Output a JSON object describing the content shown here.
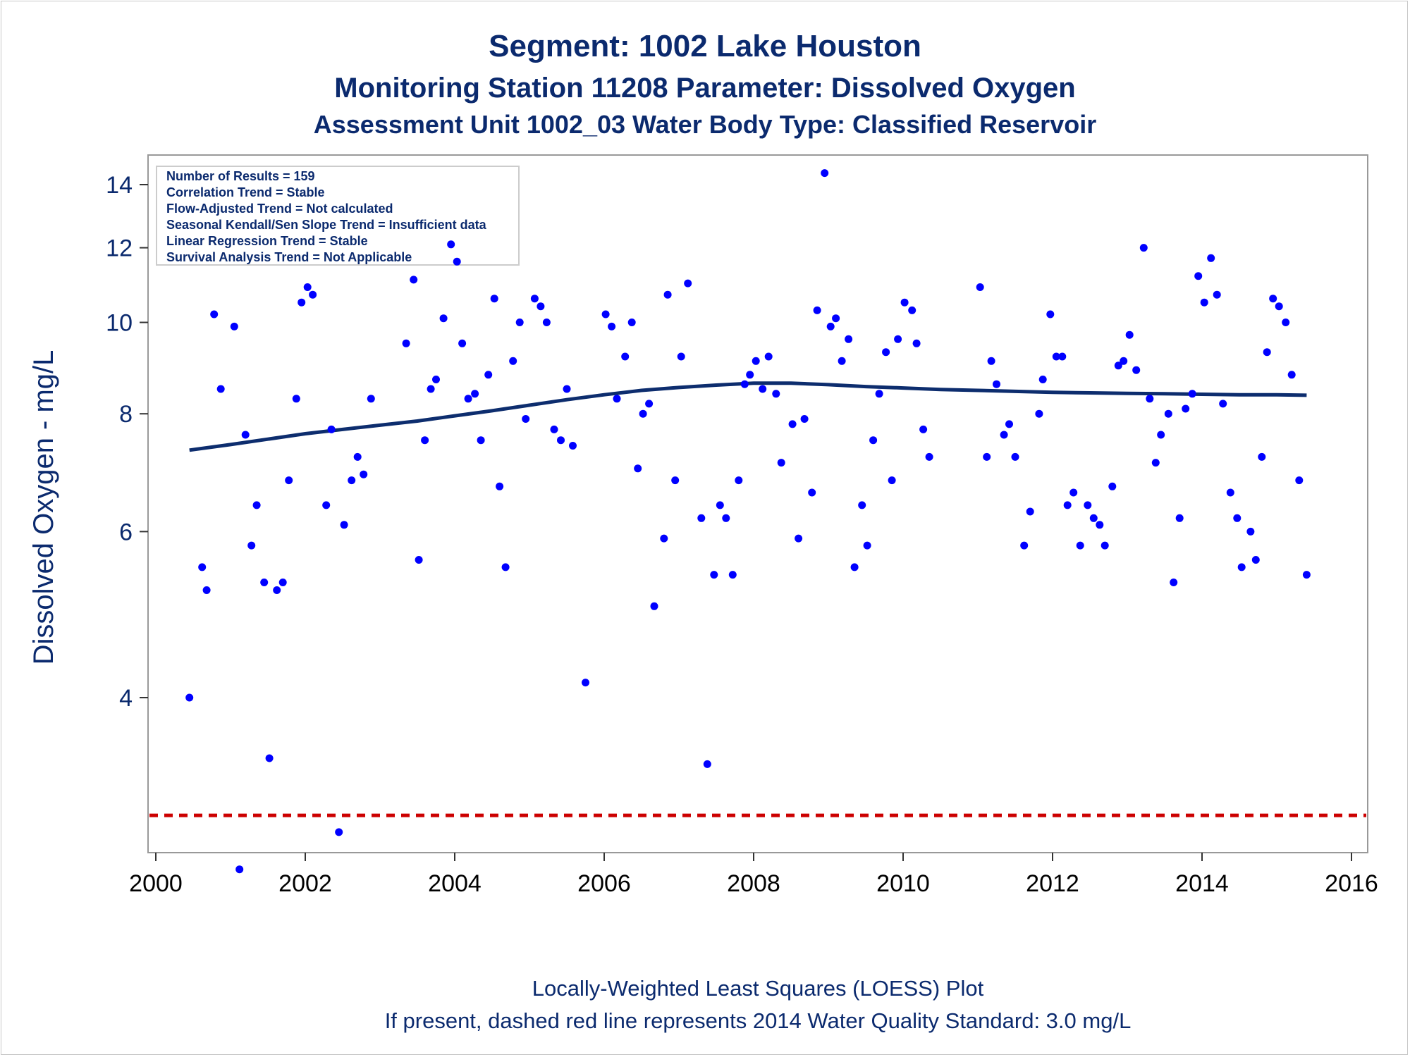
{
  "chart_data": {
    "type": "scatter",
    "title": "Segment: 1002  Lake Houston",
    "subtitle1": "Monitoring Station 11208 Parameter: Dissolved Oxygen",
    "subtitle2": "Assessment Unit 1002_03   Water Body Type: Classified Reservoir",
    "xlabel": "",
    "ylabel": "Dissolved Oxygen - mg/L",
    "x_ticks": [
      2000,
      2002,
      2004,
      2006,
      2008,
      2010,
      2012,
      2014,
      2016
    ],
    "y_ticks": [
      4,
      6,
      8,
      10,
      12,
      14
    ],
    "xlim": [
      2000,
      2016
    ],
    "ylim": [
      2.5,
      14.5
    ],
    "y_scale": "log",
    "grid": false,
    "legend_box": {
      "placement": "top-left",
      "lines": [
        "Number of Results = 159",
        "Correlation Trend = Stable",
        "Flow-Adjusted Trend = Not calculated",
        "Seasonal Kendall/Sen Slope Trend = Insufficient data",
        "Linear Regression Trend = Stable",
        "Survival Analysis Trend = Not Applicable"
      ]
    },
    "footnotes": [
      "Locally-Weighted Least Squares (LOESS) Plot",
      "If present, dashed red line represents 2014 Water Quality Standard: 3.0 mg/L"
    ],
    "standard_line": 3.0,
    "series": [
      {
        "name": "",
        "kind": "scatter",
        "color": "#0000ff",
        "points": [
          [
            2000.45,
            4.0
          ],
          [
            2000.62,
            5.5
          ],
          [
            2000.68,
            5.2
          ],
          [
            2000.78,
            10.2
          ],
          [
            2000.87,
            8.5
          ],
          [
            2001.05,
            9.9
          ],
          [
            2001.12,
            2.63
          ],
          [
            2001.2,
            7.6
          ],
          [
            2001.28,
            5.8
          ],
          [
            2001.35,
            6.4
          ],
          [
            2001.45,
            5.3
          ],
          [
            2001.52,
            3.45
          ],
          [
            2001.62,
            5.2
          ],
          [
            2001.7,
            5.3
          ],
          [
            2001.78,
            6.8
          ],
          [
            2001.88,
            8.3
          ],
          [
            2001.95,
            10.5
          ],
          [
            2002.03,
            10.9
          ],
          [
            2002.1,
            10.7
          ],
          [
            2002.28,
            6.4
          ],
          [
            2002.35,
            7.7
          ],
          [
            2002.45,
            2.88
          ],
          [
            2002.52,
            6.1
          ],
          [
            2002.62,
            6.8
          ],
          [
            2002.7,
            7.2
          ],
          [
            2002.78,
            6.9
          ],
          [
            2002.88,
            8.3
          ],
          [
            2003.35,
            9.5
          ],
          [
            2003.45,
            11.1
          ],
          [
            2003.52,
            5.6
          ],
          [
            2003.6,
            7.5
          ],
          [
            2003.68,
            8.5
          ],
          [
            2003.75,
            8.7
          ],
          [
            2003.85,
            10.1
          ],
          [
            2003.95,
            12.1
          ],
          [
            2004.03,
            11.6
          ],
          [
            2004.1,
            9.5
          ],
          [
            2004.18,
            8.3
          ],
          [
            2004.27,
            8.4
          ],
          [
            2004.35,
            7.5
          ],
          [
            2004.45,
            8.8
          ],
          [
            2004.53,
            10.6
          ],
          [
            2004.6,
            6.7
          ],
          [
            2004.68,
            5.5
          ],
          [
            2004.78,
            9.1
          ],
          [
            2004.87,
            10.0
          ],
          [
            2004.95,
            7.9
          ],
          [
            2005.07,
            10.6
          ],
          [
            2005.15,
            10.4
          ],
          [
            2005.23,
            10.0
          ],
          [
            2005.33,
            7.7
          ],
          [
            2005.42,
            7.5
          ],
          [
            2005.5,
            8.5
          ],
          [
            2005.58,
            7.4
          ],
          [
            2005.75,
            4.15
          ],
          [
            2006.02,
            10.2
          ],
          [
            2006.1,
            9.9
          ],
          [
            2006.17,
            8.3
          ],
          [
            2006.28,
            9.2
          ],
          [
            2006.37,
            10.0
          ],
          [
            2006.45,
            7.0
          ],
          [
            2006.52,
            8.0
          ],
          [
            2006.6,
            8.2
          ],
          [
            2006.67,
            5.0
          ],
          [
            2006.8,
            5.9
          ],
          [
            2006.85,
            10.7
          ],
          [
            2006.95,
            6.8
          ],
          [
            2007.03,
            9.2
          ],
          [
            2007.12,
            11.0
          ],
          [
            2007.3,
            6.2
          ],
          [
            2007.38,
            3.4
          ],
          [
            2007.47,
            5.4
          ],
          [
            2007.55,
            6.4
          ],
          [
            2007.63,
            6.2
          ],
          [
            2007.72,
            5.4
          ],
          [
            2007.8,
            6.8
          ],
          [
            2007.88,
            8.6
          ],
          [
            2007.95,
            8.8
          ],
          [
            2008.03,
            9.1
          ],
          [
            2008.12,
            8.5
          ],
          [
            2008.2,
            9.2
          ],
          [
            2008.3,
            8.4
          ],
          [
            2008.37,
            7.1
          ],
          [
            2008.52,
            7.8
          ],
          [
            2008.6,
            5.9
          ],
          [
            2008.68,
            7.9
          ],
          [
            2008.78,
            6.6
          ],
          [
            2008.85,
            10.3
          ],
          [
            2008.95,
            14.4
          ],
          [
            2009.03,
            9.9
          ],
          [
            2009.1,
            10.1
          ],
          [
            2009.18,
            9.1
          ],
          [
            2009.27,
            9.6
          ],
          [
            2009.35,
            5.5
          ],
          [
            2009.45,
            6.4
          ],
          [
            2009.52,
            5.8
          ],
          [
            2009.6,
            7.5
          ],
          [
            2009.68,
            8.4
          ],
          [
            2009.77,
            9.3
          ],
          [
            2009.85,
            6.8
          ],
          [
            2009.93,
            9.6
          ],
          [
            2010.02,
            10.5
          ],
          [
            2010.12,
            10.3
          ],
          [
            2010.18,
            9.5
          ],
          [
            2010.27,
            7.7
          ],
          [
            2010.35,
            7.2
          ],
          [
            2011.03,
            10.9
          ],
          [
            2011.12,
            7.2
          ],
          [
            2011.18,
            9.1
          ],
          [
            2011.25,
            8.6
          ],
          [
            2011.35,
            7.6
          ],
          [
            2011.42,
            7.8
          ],
          [
            2011.5,
            7.2
          ],
          [
            2011.62,
            5.8
          ],
          [
            2011.7,
            6.3
          ],
          [
            2011.82,
            8.0
          ],
          [
            2011.87,
            8.7
          ],
          [
            2011.97,
            10.2
          ],
          [
            2012.05,
            9.2
          ],
          [
            2012.13,
            9.2
          ],
          [
            2012.2,
            6.4
          ],
          [
            2012.28,
            6.6
          ],
          [
            2012.37,
            5.8
          ],
          [
            2012.47,
            6.4
          ],
          [
            2012.55,
            6.2
          ],
          [
            2012.63,
            6.1
          ],
          [
            2012.7,
            5.8
          ],
          [
            2012.8,
            6.7
          ],
          [
            2012.88,
            9.0
          ],
          [
            2012.95,
            9.1
          ],
          [
            2013.03,
            9.7
          ],
          [
            2013.12,
            8.9
          ],
          [
            2013.22,
            12.0
          ],
          [
            2013.3,
            8.3
          ],
          [
            2013.38,
            7.1
          ],
          [
            2013.45,
            7.6
          ],
          [
            2013.55,
            8.0
          ],
          [
            2013.62,
            5.3
          ],
          [
            2013.7,
            6.2
          ],
          [
            2013.78,
            8.1
          ],
          [
            2013.87,
            8.4
          ],
          [
            2013.95,
            11.2
          ],
          [
            2014.03,
            10.5
          ],
          [
            2014.12,
            11.7
          ],
          [
            2014.2,
            10.7
          ],
          [
            2014.28,
            8.2
          ],
          [
            2014.38,
            6.6
          ],
          [
            2014.47,
            6.2
          ],
          [
            2014.53,
            5.5
          ],
          [
            2014.65,
            6.0
          ],
          [
            2014.72,
            5.6
          ],
          [
            2014.8,
            7.2
          ],
          [
            2014.87,
            9.3
          ],
          [
            2014.95,
            10.6
          ],
          [
            2015.03,
            10.4
          ],
          [
            2015.12,
            10.0
          ],
          [
            2015.2,
            8.8
          ],
          [
            2015.3,
            6.8
          ],
          [
            2015.4,
            5.4
          ]
        ]
      },
      {
        "name": "",
        "kind": "line",
        "color": "#0d2d6e",
        "points": [
          [
            2000.45,
            7.32
          ],
          [
            2001.0,
            7.42
          ],
          [
            2001.5,
            7.52
          ],
          [
            2002.0,
            7.62
          ],
          [
            2002.5,
            7.7
          ],
          [
            2003.0,
            7.78
          ],
          [
            2003.5,
            7.86
          ],
          [
            2004.0,
            7.96
          ],
          [
            2004.5,
            8.06
          ],
          [
            2005.0,
            8.17
          ],
          [
            2005.5,
            8.28
          ],
          [
            2006.0,
            8.38
          ],
          [
            2006.5,
            8.47
          ],
          [
            2007.0,
            8.53
          ],
          [
            2007.5,
            8.58
          ],
          [
            2008.0,
            8.62
          ],
          [
            2008.5,
            8.62
          ],
          [
            2009.0,
            8.59
          ],
          [
            2009.5,
            8.55
          ],
          [
            2010.0,
            8.52
          ],
          [
            2010.5,
            8.49
          ],
          [
            2011.0,
            8.47
          ],
          [
            2011.5,
            8.45
          ],
          [
            2012.0,
            8.43
          ],
          [
            2012.5,
            8.42
          ],
          [
            2013.0,
            8.41
          ],
          [
            2013.5,
            8.4
          ],
          [
            2014.0,
            8.39
          ],
          [
            2014.5,
            8.38
          ],
          [
            2015.0,
            8.38
          ],
          [
            2015.4,
            8.37
          ]
        ]
      }
    ],
    "colors": {
      "points": "#0000ff",
      "loess": "#0d2d6e",
      "standard": "#cc0000",
      "text": "#0b2a6e",
      "axis": "#999999"
    }
  }
}
